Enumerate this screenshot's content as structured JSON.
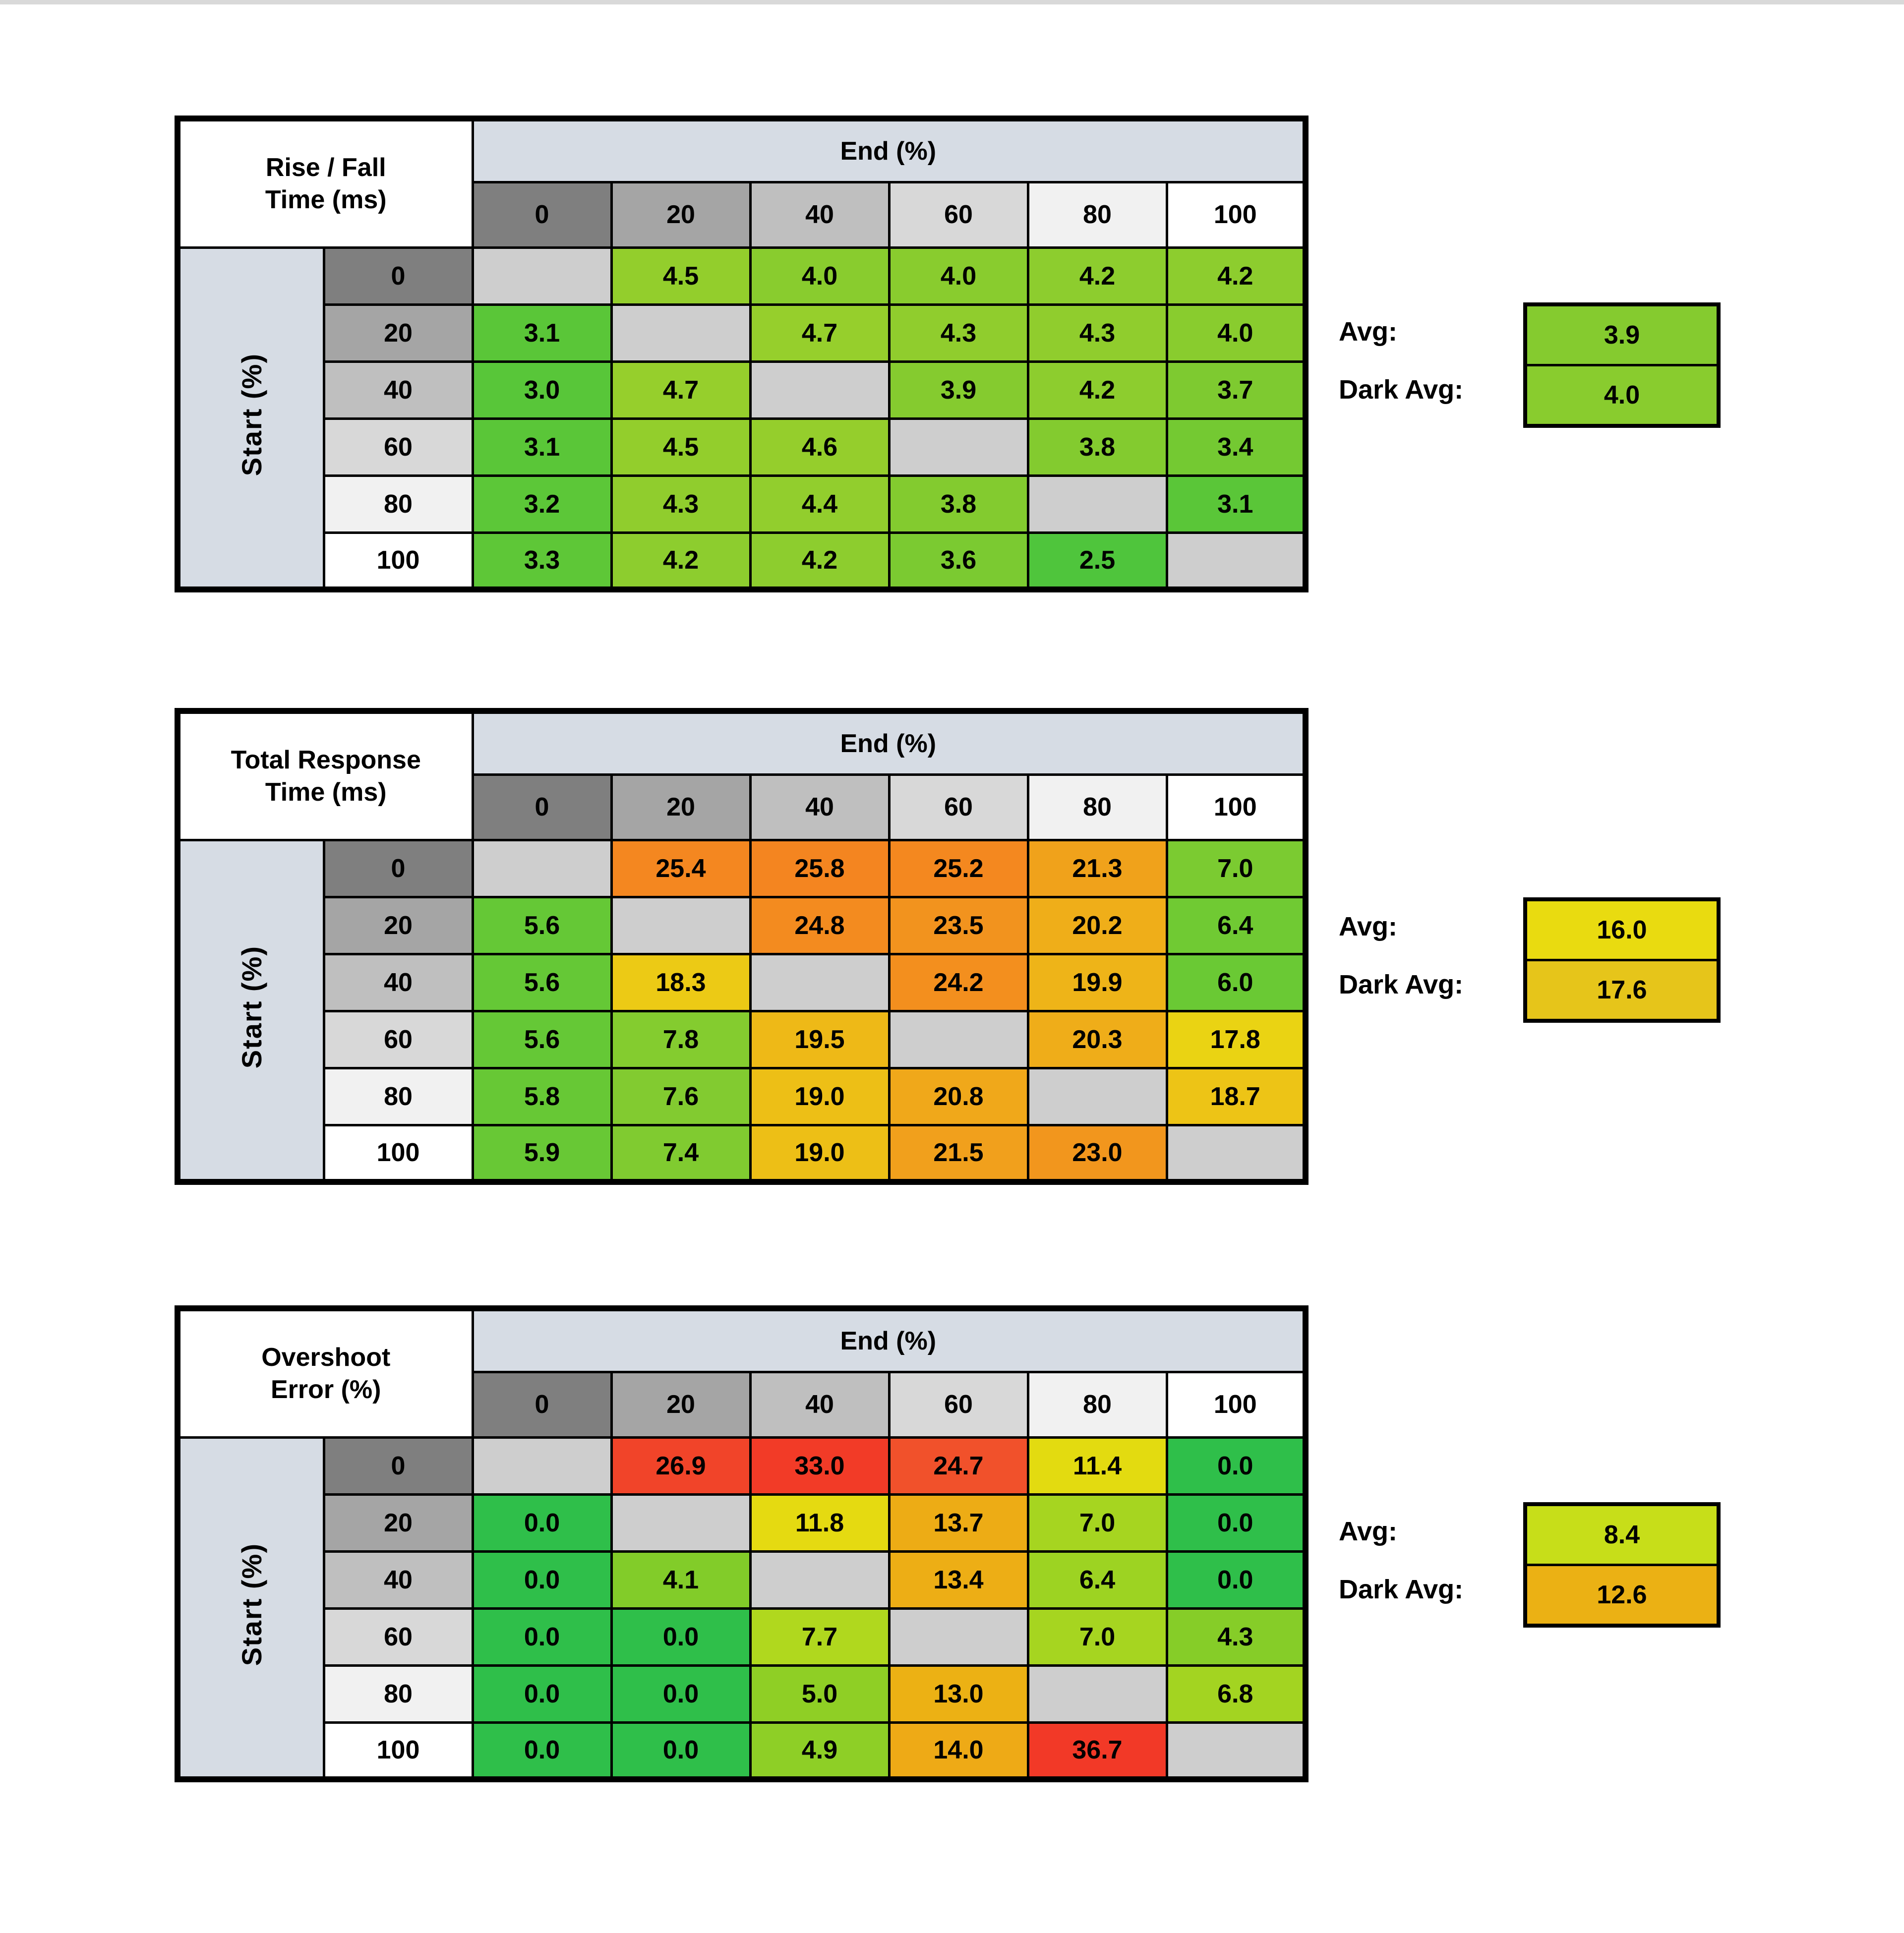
{
  "style": {
    "page_background": "#ffffff",
    "top_strip_color": "#d9d9d9",
    "axis_band_color": "#d6dce4",
    "diagonal_cell_color": "#cecece",
    "border_color": "#000000",
    "text_color": "#000000",
    "header_shades": {
      "0": "#7f7f7f",
      "20": "#a5a5a5",
      "40": "#bfbfbf",
      "60": "#d8d8d8",
      "80": "#f1f1f1",
      "100": "#ffffff"
    }
  },
  "chart_data": [
    {
      "type": "heatmap",
      "title_line1": "Rise / Fall",
      "title_line2": "Time (ms)",
      "col_axis_label": "End (%)",
      "row_axis_label": "Start (%)",
      "columns": [
        0,
        20,
        40,
        60,
        80,
        100
      ],
      "rows": [
        0,
        20,
        40,
        60,
        80,
        100
      ],
      "values": [
        [
          null,
          4.5,
          4.0,
          4.0,
          4.2,
          4.2
        ],
        [
          3.1,
          null,
          4.7,
          4.3,
          4.3,
          4.0
        ],
        [
          3.0,
          4.7,
          null,
          3.9,
          4.2,
          3.7
        ],
        [
          3.1,
          4.5,
          4.6,
          null,
          3.8,
          3.4
        ],
        [
          3.2,
          4.3,
          4.4,
          3.8,
          null,
          3.1
        ],
        [
          3.3,
          4.2,
          4.2,
          3.6,
          2.5,
          null
        ]
      ],
      "cell_colors": [
        [
          null,
          "#93ce2c",
          "#89cc2e",
          "#89cc2e",
          "#8dcd2e",
          "#8dcd2e"
        ],
        [
          "#5ac638",
          null,
          "#96cf2c",
          "#90cd2d",
          "#90cd2d",
          "#89cc2e"
        ],
        [
          "#58c639",
          "#96cf2c",
          null,
          "#85cb2f",
          "#8dcd2e",
          "#7eca30"
        ],
        [
          "#5ac638",
          "#93ce2c",
          "#95ce2c",
          null,
          "#83cb2f",
          "#74c932"
        ],
        [
          "#5cc738",
          "#90cd2d",
          "#92ce2d",
          "#83cb2f",
          null,
          "#5ac638"
        ],
        [
          "#5ec737",
          "#8dcd2e",
          "#8dcd2e",
          "#7bca31",
          "#4fc53c",
          null
        ]
      ],
      "avg_label": "Avg:",
      "avg": {
        "value": 3.9,
        "display": "3.9",
        "color": "#85cb2f"
      },
      "dark_avg_label": "Dark Avg:",
      "dark_avg": {
        "value": 4.0,
        "display": "4.0",
        "color": "#89cc2e"
      }
    },
    {
      "type": "heatmap",
      "title_line1": "Total Response",
      "title_line2": "Time (ms)",
      "col_axis_label": "End (%)",
      "row_axis_label": "Start (%)",
      "columns": [
        0,
        20,
        40,
        60,
        80,
        100
      ],
      "rows": [
        0,
        20,
        40,
        60,
        80,
        100
      ],
      "values": [
        [
          null,
          25.4,
          25.8,
          25.2,
          21.3,
          7.0
        ],
        [
          5.6,
          null,
          24.8,
          23.5,
          20.2,
          6.4
        ],
        [
          5.6,
          18.3,
          null,
          24.2,
          19.9,
          6.0
        ],
        [
          5.6,
          7.8,
          19.5,
          null,
          20.3,
          17.8
        ],
        [
          5.8,
          7.6,
          19.0,
          20.8,
          null,
          18.7
        ],
        [
          5.9,
          7.4,
          19.0,
          21.5,
          23.0,
          null
        ]
      ],
      "cell_colors": [
        [
          null,
          "#f48720",
          "#f48520",
          "#f4881f",
          "#f0a21b",
          "#7bcb31"
        ],
        [
          "#65c836",
          null,
          "#f38b1f",
          "#f2931e",
          "#efae19",
          "#70ca33"
        ],
        [
          "#65c836",
          "#ecca15",
          null,
          "#f38f1e",
          "#eeb418",
          "#6ac934"
        ],
        [
          "#65c836",
          "#84cc2f",
          "#eeb917",
          null,
          "#efad19",
          "#ead313"
        ],
        [
          "#67c835",
          "#82cb30",
          "#edbf16",
          "#f0a81a",
          null,
          "#edc416"
        ],
        [
          "#68c835",
          "#80cb30",
          "#edbf16",
          "#f1a01c",
          "#f2961d",
          null
        ]
      ],
      "avg_label": "Avg:",
      "avg": {
        "value": 16.0,
        "display": "16.0",
        "color": "#e9db10"
      },
      "dark_avg_label": "Dark Avg:",
      "dark_avg": {
        "value": 17.6,
        "display": "17.6",
        "color": "#e6c51a"
      }
    },
    {
      "type": "heatmap",
      "title_line1": "Overshoot",
      "title_line2": "Error (%)",
      "col_axis_label": "End (%)",
      "row_axis_label": "Start (%)",
      "columns": [
        0,
        20,
        40,
        60,
        80,
        100
      ],
      "rows": [
        0,
        20,
        40,
        60,
        80,
        100
      ],
      "values": [
        [
          null,
          26.9,
          33.0,
          24.7,
          11.4,
          0.0
        ],
        [
          0.0,
          null,
          11.8,
          13.7,
          7.0,
          0.0
        ],
        [
          0.0,
          4.1,
          null,
          13.4,
          6.4,
          0.0
        ],
        [
          0.0,
          0.0,
          7.7,
          null,
          7.0,
          4.3
        ],
        [
          0.0,
          0.0,
          5.0,
          13.0,
          null,
          6.8
        ],
        [
          0.0,
          0.0,
          4.9,
          14.0,
          36.7,
          null
        ]
      ],
      "cell_colors": [
        [
          null,
          "#f14429",
          "#f23b27",
          "#f1512b",
          "#e3db10",
          "#2fbf4a"
        ],
        [
          "#2fbf4a",
          null,
          "#e5da11",
          "#edac15",
          "#a6d520",
          "#2fbf4a"
        ],
        [
          "#2fbf4a",
          "#82cc29",
          null,
          "#edae15",
          "#9dd322",
          "#2fbf4a"
        ],
        [
          "#2fbf4a",
          "#2fbf4a",
          "#b0d81e",
          null,
          "#a6d520",
          "#86cd28"
        ],
        [
          "#2fbf4a",
          "#2fbf4a",
          "#8fcf25",
          "#ecb114",
          null,
          "#a3d421"
        ],
        [
          "#2fbf4a",
          "#2fbf4a",
          "#8ecf26",
          "#eeaa16",
          "#f23927",
          null
        ]
      ],
      "avg_label": "Avg:",
      "avg": {
        "value": 8.4,
        "display": "8.4",
        "color": "#c7de19"
      },
      "dark_avg_label": "Dark Avg:",
      "dark_avg": {
        "value": 12.6,
        "display": "12.6",
        "color": "#ebb114"
      }
    }
  ]
}
